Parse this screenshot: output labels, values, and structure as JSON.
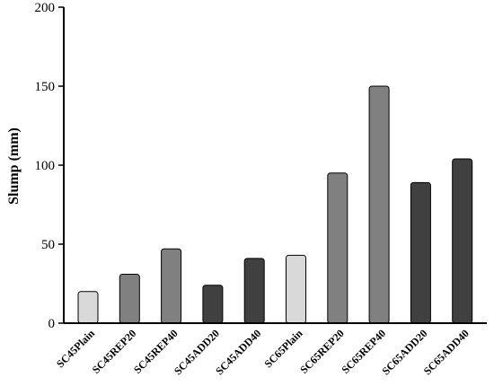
{
  "chart_data": {
    "type": "bar",
    "title": "",
    "xlabel": "",
    "ylabel": "Slump (mm)",
    "ylim": [
      0,
      200
    ],
    "yticks": [
      0,
      50,
      100,
      150,
      200
    ],
    "grid": false,
    "categories": [
      "SC45Plain",
      "SC45REP20",
      "SC45REP40",
      "SC45ADD20",
      "SC45ADD40",
      "SC65Plain",
      "SC65REP20",
      "SC65REP40",
      "SC65ADD20",
      "SC65ADD40"
    ],
    "values": [
      20,
      31,
      47,
      24,
      41,
      43,
      95,
      150,
      89,
      104
    ],
    "bar_colors": [
      "#d9d9d9",
      "#808080",
      "#808080",
      "#404040",
      "#404040",
      "#d9d9d9",
      "#808080",
      "#808080",
      "#404040",
      "#404040"
    ]
  }
}
